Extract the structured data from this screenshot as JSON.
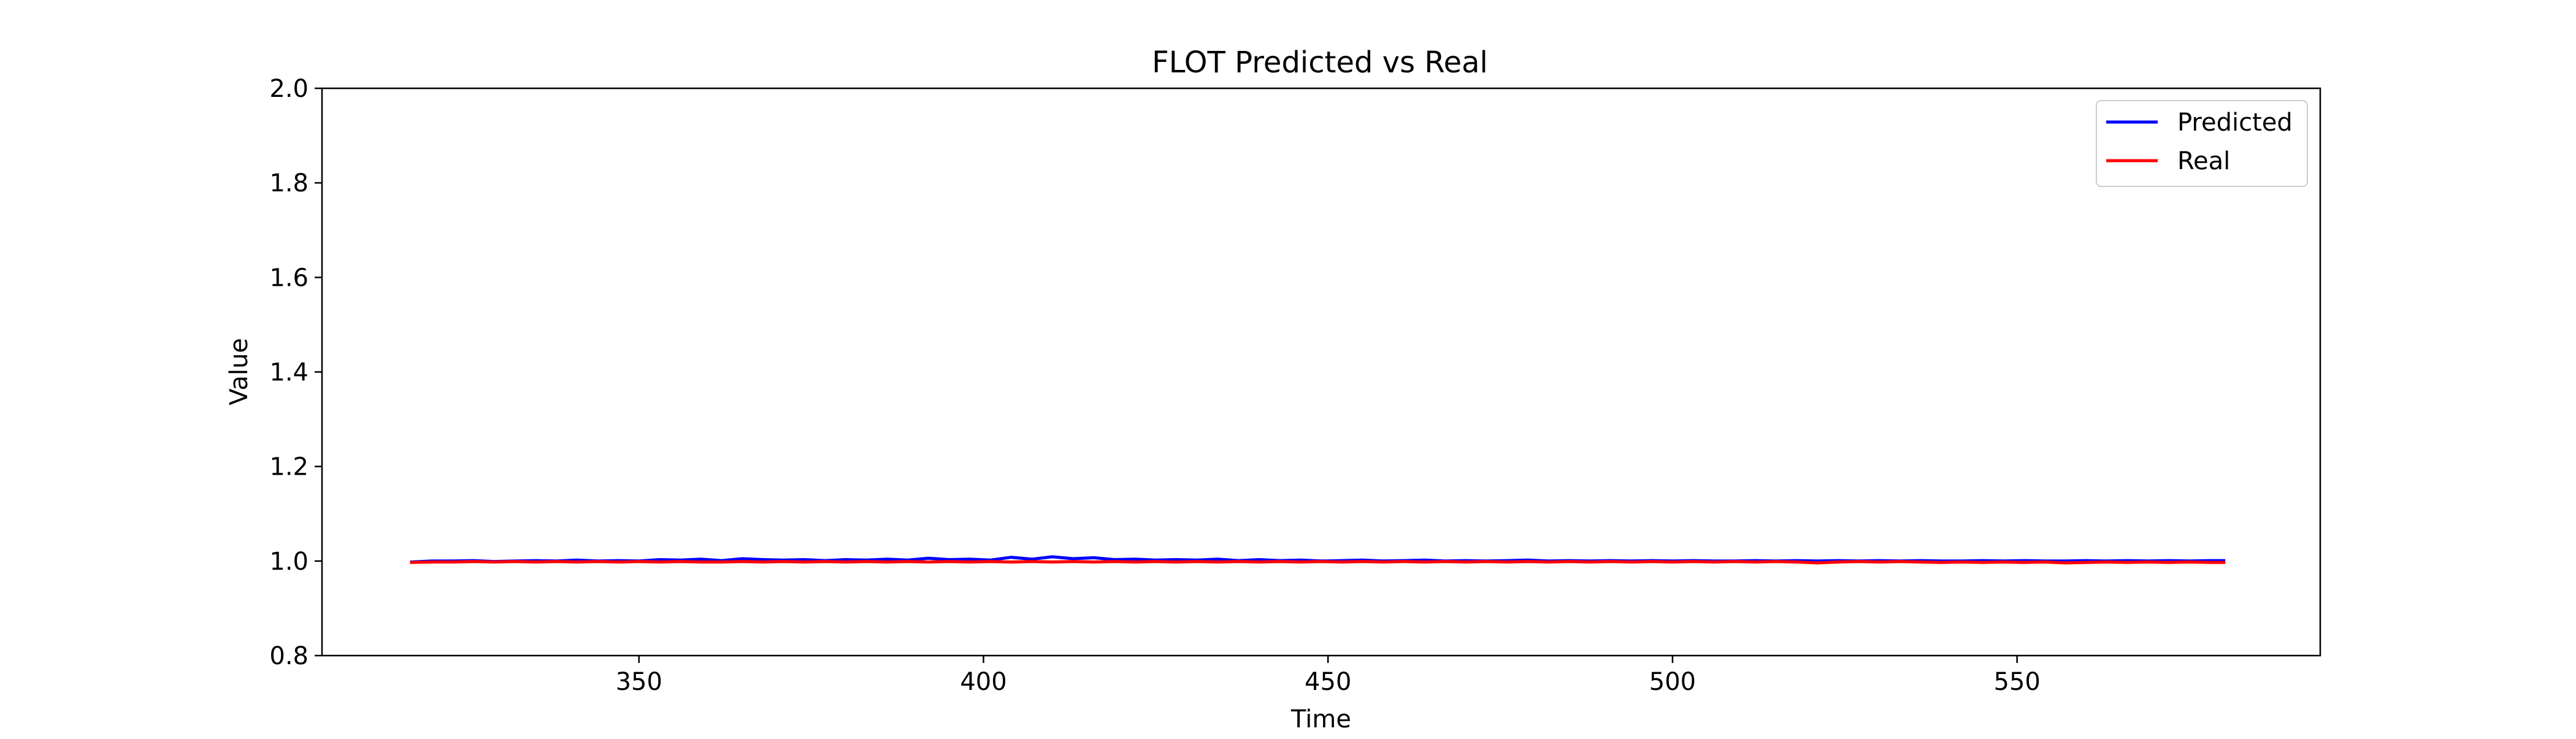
{
  "chart_data": {
    "type": "line",
    "title": "FLOT Predicted vs Real",
    "xlabel": "Time",
    "ylabel": "Value",
    "xlim": [
      304,
      594
    ],
    "ylim": [
      0.8,
      2.0
    ],
    "x_ticks": [
      350,
      400,
      450,
      500,
      550
    ],
    "y_ticks": [
      0.8,
      1.0,
      1.2,
      1.4,
      1.6,
      1.8,
      2.0
    ],
    "x_tick_labels": [
      "350",
      "400",
      "450",
      "500",
      "550"
    ],
    "y_tick_labels": [
      "0.8",
      "1.0",
      "1.2",
      "1.4",
      "1.6",
      "1.8",
      "2.0"
    ],
    "grid": false,
    "legend_position": "top-right",
    "x": [
      317,
      320,
      323,
      326,
      329,
      332,
      335,
      338,
      341,
      344,
      347,
      350,
      353,
      356,
      359,
      362,
      365,
      368,
      371,
      374,
      377,
      380,
      383,
      386,
      389,
      392,
      395,
      398,
      401,
      404,
      407,
      410,
      413,
      416,
      419,
      422,
      425,
      428,
      431,
      434,
      437,
      440,
      443,
      446,
      449,
      452,
      455,
      458,
      461,
      464,
      467,
      470,
      473,
      476,
      479,
      482,
      485,
      488,
      491,
      494,
      497,
      500,
      503,
      506,
      509,
      512,
      515,
      518,
      521,
      524,
      527,
      530,
      533,
      536,
      539,
      542,
      545,
      548,
      551,
      554,
      557,
      560,
      563,
      566,
      569,
      572,
      575,
      578,
      580
    ],
    "series": [
      {
        "name": "Predicted",
        "color": "#0000ff",
        "values": [
          0.998,
          1.0,
          1.0,
          1.001,
          0.999,
          1.0,
          1.001,
          1.0,
          1.002,
          1.0,
          1.001,
          1.0,
          1.003,
          1.002,
          1.004,
          1.001,
          1.005,
          1.003,
          1.002,
          1.003,
          1.001,
          1.003,
          1.002,
          1.004,
          1.002,
          1.006,
          1.003,
          1.004,
          1.002,
          1.008,
          1.004,
          1.009,
          1.005,
          1.007,
          1.003,
          1.004,
          1.002,
          1.003,
          1.002,
          1.004,
          1.001,
          1.003,
          1.001,
          1.002,
          1.0,
          1.001,
          1.002,
          1.0,
          1.001,
          1.002,
          1.0,
          1.001,
          1.0,
          1.001,
          1.002,
          1.0,
          1.001,
          1.0,
          1.001,
          1.0,
          1.001,
          1.0,
          1.001,
          1.0,
          1.0,
          1.001,
          1.0,
          1.001,
          1.0,
          1.001,
          1.0,
          1.001,
          1.0,
          1.001,
          1.0,
          1.0,
          1.001,
          1.0,
          1.001,
          1.0,
          1.0,
          1.001,
          1.0,
          1.001,
          1.0,
          1.001,
          1.0,
          1.001,
          1.001
        ]
      },
      {
        "name": "Real",
        "color": "#ff0000",
        "values": [
          0.997,
          0.998,
          0.998,
          0.999,
          0.998,
          0.999,
          0.998,
          0.999,
          0.998,
          0.999,
          0.998,
          0.999,
          0.998,
          0.999,
          0.998,
          0.998,
          0.999,
          0.998,
          0.999,
          0.998,
          0.999,
          0.998,
          0.999,
          0.998,
          0.999,
          0.998,
          0.999,
          0.998,
          0.999,
          0.998,
          0.999,
          0.998,
          0.999,
          0.998,
          0.999,
          0.998,
          0.999,
          0.998,
          0.999,
          0.998,
          0.999,
          0.998,
          0.999,
          0.998,
          0.999,
          0.998,
          0.999,
          0.998,
          0.999,
          0.998,
          0.999,
          0.998,
          0.999,
          0.998,
          0.999,
          0.998,
          0.999,
          0.998,
          0.999,
          0.998,
          0.999,
          0.998,
          0.999,
          0.998,
          0.999,
          0.998,
          0.999,
          0.998,
          0.996,
          0.998,
          0.999,
          0.998,
          0.999,
          0.998,
          0.997,
          0.998,
          0.997,
          0.998,
          0.997,
          0.998,
          0.996,
          0.997,
          0.998,
          0.997,
          0.998,
          0.997,
          0.998,
          0.997,
          0.997
        ]
      }
    ]
  }
}
